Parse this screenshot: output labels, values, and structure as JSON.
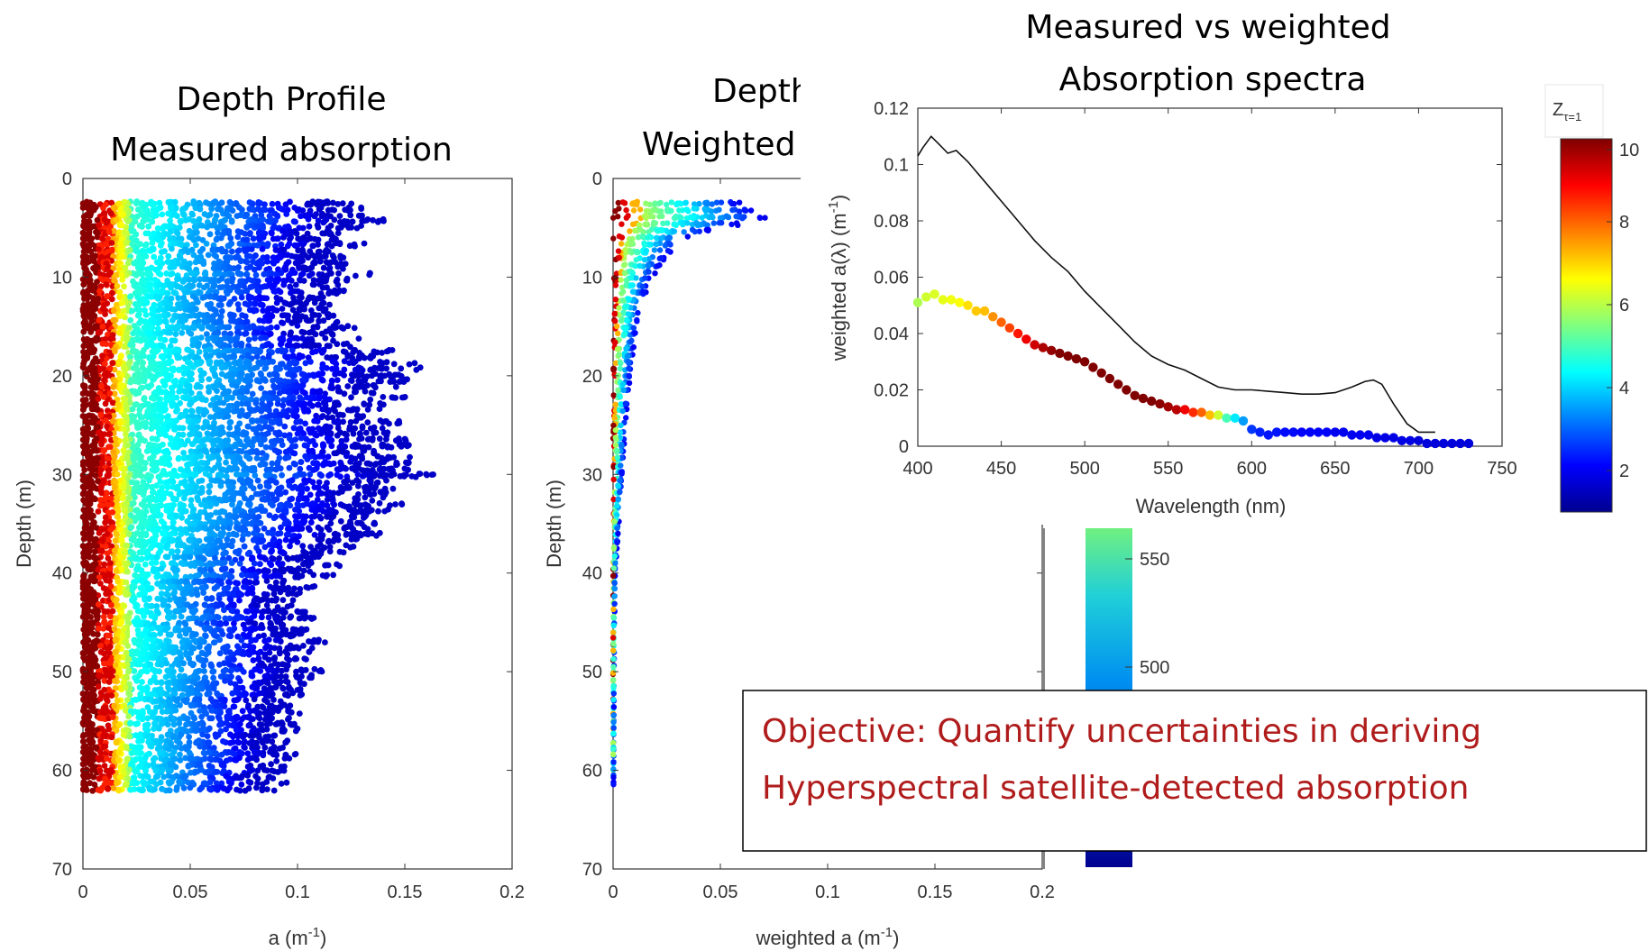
{
  "chart_data": [
    {
      "type": "scatter",
      "title": [
        "Depth Profile",
        "Measured absorption"
      ],
      "xlabel": "a (m",
      "xlabel_sup": "-1",
      "xlabel_end": ")",
      "ylabel": "Depth (m)",
      "xlim": [
        0,
        0.2
      ],
      "ylim": [
        0,
        70
      ],
      "y_reversed": true,
      "xticks": [
        "0",
        "0.05",
        "0.1",
        "0.15",
        "0.2"
      ],
      "yticks": [
        "0",
        "10",
        "20",
        "30",
        "40",
        "50",
        "60",
        "70"
      ],
      "depth_range": [
        2.5,
        62
      ],
      "max_a_profile": [
        [
          2.5,
          0.14
        ],
        [
          4,
          0.145
        ],
        [
          6,
          0.13
        ],
        [
          8,
          0.12
        ],
        [
          10,
          0.13
        ],
        [
          14,
          0.115
        ],
        [
          17,
          0.14
        ],
        [
          19,
          0.16
        ],
        [
          22,
          0.155
        ],
        [
          26,
          0.15
        ],
        [
          29,
          0.16
        ],
        [
          32,
          0.155
        ],
        [
          35,
          0.145
        ],
        [
          38,
          0.12
        ],
        [
          41,
          0.11
        ],
        [
          45,
          0.105
        ],
        [
          48,
          0.11
        ],
        [
          51,
          0.105
        ],
        [
          55,
          0.095
        ],
        [
          58,
          0.1
        ],
        [
          62,
          0.095
        ]
      ],
      "dark_red_edge_a": 0.007,
      "red_edge_a": 0.014,
      "yellow_edge_a": 0.022
    },
    {
      "type": "scatter",
      "title": [
        "Depth",
        "Weighted"
      ],
      "xlabel": "weighted a (m",
      "xlabel_sup": "-1",
      "xlabel_end": ")",
      "ylabel": "Depth (m)",
      "xlim": [
        0,
        0.2
      ],
      "ylim": [
        0,
        70
      ],
      "y_reversed": true,
      "xticks": [
        "0",
        "0.05",
        "0.1",
        "0.15",
        "0.2"
      ],
      "yticks": [
        "0",
        "10",
        "20",
        "30",
        "40",
        "50",
        "60",
        "70"
      ],
      "envelope": [
        [
          2.5,
          0.06
        ],
        [
          3,
          0.065
        ],
        [
          3.5,
          0.07
        ],
        [
          4,
          0.072
        ],
        [
          5,
          0.05
        ],
        [
          6,
          0.035
        ],
        [
          8,
          0.025
        ],
        [
          10,
          0.018
        ],
        [
          13,
          0.013
        ],
        [
          17,
          0.01
        ],
        [
          22,
          0.007
        ],
        [
          28,
          0.005
        ],
        [
          34,
          0.003
        ],
        [
          40,
          0.001
        ],
        [
          48,
          0.0005
        ],
        [
          62,
          0.0002
        ]
      ],
      "colorbar_ticks": [
        "550",
        "500"
      ]
    },
    {
      "type": "line",
      "title": [
        "Measured vs weighted",
        "Absorption spectra"
      ],
      "xlabel": "Wavelength (nm)",
      "ylabel": "weighted a(λ) (m",
      "ylabel_sup": "-1",
      "ylabel_end": ")",
      "xlim": [
        400,
        750
      ],
      "ylim": [
        0,
        0.12
      ],
      "xticks": [
        "400",
        "450",
        "500",
        "550",
        "600",
        "650",
        "700",
        "750"
      ],
      "yticks": [
        "0",
        "0.02",
        "0.04",
        "0.06",
        "0.08",
        "0.1",
        "0.12"
      ],
      "measured": [
        [
          400,
          0.103
        ],
        [
          403,
          0.106
        ],
        [
          408,
          0.11
        ],
        [
          413,
          0.107
        ],
        [
          418,
          0.104
        ],
        [
          423,
          0.105
        ],
        [
          430,
          0.101
        ],
        [
          440,
          0.094
        ],
        [
          450,
          0.087
        ],
        [
          460,
          0.08
        ],
        [
          470,
          0.073
        ],
        [
          480,
          0.067
        ],
        [
          490,
          0.062
        ],
        [
          500,
          0.055
        ],
        [
          510,
          0.049
        ],
        [
          520,
          0.043
        ],
        [
          530,
          0.037
        ],
        [
          540,
          0.032
        ],
        [
          550,
          0.029
        ],
        [
          560,
          0.027
        ],
        [
          570,
          0.024
        ],
        [
          580,
          0.021
        ],
        [
          590,
          0.02
        ],
        [
          600,
          0.02
        ],
        [
          610,
          0.0195
        ],
        [
          620,
          0.019
        ],
        [
          630,
          0.0185
        ],
        [
          640,
          0.0185
        ],
        [
          650,
          0.019
        ],
        [
          660,
          0.021
        ],
        [
          668,
          0.023
        ],
        [
          673,
          0.0235
        ],
        [
          678,
          0.022
        ],
        [
          685,
          0.015
        ],
        [
          693,
          0.008
        ],
        [
          700,
          0.005
        ],
        [
          710,
          0.005
        ]
      ],
      "weighted_points": [
        [
          400,
          0.051,
          5.9
        ],
        [
          405,
          0.053,
          6.2
        ],
        [
          410,
          0.054,
          6.3
        ],
        [
          415,
          0.052,
          6.4
        ],
        [
          420,
          0.052,
          6.5
        ],
        [
          425,
          0.051,
          6.6
        ],
        [
          430,
          0.05,
          6.9
        ],
        [
          435,
          0.048,
          7.1
        ],
        [
          440,
          0.048,
          7.2
        ],
        [
          445,
          0.046,
          7.6
        ],
        [
          450,
          0.044,
          8.0
        ],
        [
          455,
          0.042,
          8.3
        ],
        [
          460,
          0.04,
          8.7
        ],
        [
          465,
          0.038,
          9.0
        ],
        [
          470,
          0.036,
          9.3
        ],
        [
          475,
          0.035,
          9.6
        ],
        [
          480,
          0.034,
          9.8
        ],
        [
          485,
          0.033,
          10.0
        ],
        [
          490,
          0.032,
          10.0
        ],
        [
          495,
          0.031,
          10.0
        ],
        [
          500,
          0.03,
          10.0
        ],
        [
          505,
          0.028,
          10.0
        ],
        [
          510,
          0.026,
          10.0
        ],
        [
          515,
          0.024,
          10.0
        ],
        [
          520,
          0.022,
          10.0
        ],
        [
          525,
          0.02,
          10.0
        ],
        [
          530,
          0.018,
          10.0
        ],
        [
          535,
          0.017,
          10.0
        ],
        [
          540,
          0.016,
          10.0
        ],
        [
          545,
          0.015,
          9.9
        ],
        [
          550,
          0.014,
          9.7
        ],
        [
          555,
          0.013,
          9.5
        ],
        [
          560,
          0.013,
          9.0
        ],
        [
          565,
          0.012,
          8.5
        ],
        [
          570,
          0.012,
          8.0
        ],
        [
          575,
          0.011,
          7.2
        ],
        [
          580,
          0.011,
          6.2
        ],
        [
          585,
          0.01,
          5.0
        ],
        [
          590,
          0.01,
          4.2
        ],
        [
          595,
          0.009,
          3.5
        ],
        [
          600,
          0.006,
          2.6
        ],
        [
          605,
          0.005,
          2.4
        ],
        [
          610,
          0.004,
          2.3
        ],
        [
          615,
          0.005,
          2.3
        ],
        [
          620,
          0.005,
          2.2
        ],
        [
          625,
          0.005,
          2.2
        ],
        [
          630,
          0.005,
          2.1
        ],
        [
          635,
          0.005,
          2.1
        ],
        [
          640,
          0.005,
          2.1
        ],
        [
          645,
          0.005,
          2.1
        ],
        [
          650,
          0.005,
          2.0
        ],
        [
          655,
          0.005,
          2.0
        ],
        [
          660,
          0.004,
          2.0
        ],
        [
          665,
          0.004,
          2.0
        ],
        [
          670,
          0.004,
          2.0
        ],
        [
          675,
          0.003,
          1.9
        ],
        [
          680,
          0.003,
          1.9
        ],
        [
          685,
          0.003,
          1.9
        ],
        [
          690,
          0.002,
          1.9
        ],
        [
          695,
          0.002,
          1.9
        ],
        [
          700,
          0.002,
          1.8
        ],
        [
          705,
          0.001,
          1.8
        ],
        [
          710,
          0.001,
          1.8
        ],
        [
          715,
          0.001,
          1.8
        ],
        [
          720,
          0.001,
          1.8
        ],
        [
          725,
          0.001,
          1.8
        ],
        [
          730,
          0.001,
          1.8
        ]
      ],
      "colorbar": {
        "label": "Z",
        "label_sub": "τ=1",
        "range": [
          1,
          10
        ],
        "ticks": [
          "10",
          "8",
          "6",
          "4",
          "2"
        ]
      }
    }
  ],
  "callout": {
    "line1": "Objective:  Quantify uncertainties in deriving",
    "line2": "Hyperspectral satellite-detected absorption"
  },
  "colors": {
    "text_red": "#b01c1c",
    "axis": "#333333",
    "jet_dark_blue": "#00008f",
    "jet_dark_red": "#800000"
  }
}
